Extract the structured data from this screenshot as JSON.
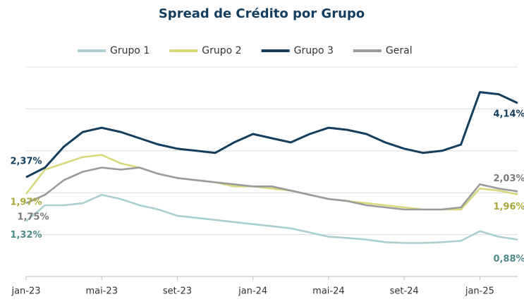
{
  "chart_data": {
    "type": "line",
    "title": "Spread de Crédito por Grupo",
    "categories": [
      "jan-23",
      null,
      null,
      null,
      "mai-23",
      null,
      null,
      null,
      "set-23",
      null,
      null,
      null,
      "jan-24",
      null,
      null,
      null,
      "mai-24",
      null,
      null,
      null,
      "set-24",
      null,
      null,
      null,
      "jan-25",
      null,
      null
    ],
    "series": [
      {
        "name": "Grupo 1",
        "color": "#a9cfcf",
        "label_color": "#4f8c8a",
        "values": [
          1.32,
          1.7,
          1.7,
          1.75,
          1.95,
          1.85,
          1.7,
          1.6,
          1.45,
          1.4,
          1.35,
          1.3,
          1.25,
          1.2,
          1.15,
          1.05,
          0.95,
          0.92,
          0.88,
          0.82,
          0.8,
          0.8,
          0.82,
          0.85,
          1.08,
          0.95,
          0.88
        ],
        "value_labels": [
          "1,32%",
          null,
          null,
          null,
          null,
          null,
          null,
          null,
          null,
          null,
          null,
          null,
          null,
          null,
          null,
          null,
          null,
          null,
          null,
          null,
          null,
          null,
          null,
          null,
          null,
          null,
          "0,88%"
        ]
      },
      {
        "name": "Grupo 2",
        "color": "#d6d97c",
        "label_color": "#a9a83a",
        "values": [
          1.97,
          2.55,
          2.7,
          2.85,
          2.9,
          2.7,
          2.6,
          2.45,
          2.35,
          2.3,
          2.25,
          2.15,
          2.15,
          2.1,
          2.05,
          1.95,
          1.85,
          1.8,
          1.75,
          1.7,
          1.65,
          1.6,
          1.6,
          1.6,
          2.1,
          2.05,
          1.96
        ],
        "value_labels": [
          "1,97%",
          null,
          null,
          null,
          null,
          null,
          null,
          null,
          null,
          null,
          null,
          null,
          null,
          null,
          null,
          null,
          null,
          null,
          null,
          null,
          null,
          null,
          null,
          null,
          null,
          null,
          "1,96%"
        ]
      },
      {
        "name": "Grupo 3",
        "color": "#143d5e",
        "label_color": "#143d5e",
        "values": [
          2.37,
          2.6,
          3.1,
          3.45,
          3.55,
          3.45,
          3.3,
          3.15,
          3.05,
          3.0,
          2.95,
          3.2,
          3.4,
          3.3,
          3.2,
          3.4,
          3.55,
          3.5,
          3.4,
          3.2,
          3.05,
          2.95,
          3.0,
          3.15,
          4.4,
          4.35,
          4.14
        ],
        "value_labels": [
          "2,37%",
          null,
          null,
          null,
          null,
          null,
          null,
          null,
          null,
          null,
          null,
          null,
          null,
          null,
          null,
          null,
          null,
          null,
          null,
          null,
          null,
          null,
          null,
          null,
          null,
          null,
          "4,14%"
        ]
      },
      {
        "name": "Geral",
        "color": "#9b9b9b",
        "label_color": "#7b7b7b",
        "values": [
          1.75,
          1.95,
          2.3,
          2.5,
          2.6,
          2.55,
          2.6,
          2.45,
          2.35,
          2.3,
          2.25,
          2.2,
          2.15,
          2.15,
          2.05,
          1.95,
          1.85,
          1.8,
          1.7,
          1.65,
          1.6,
          1.6,
          1.6,
          1.65,
          2.2,
          2.1,
          2.03
        ],
        "value_labels": [
          "1,75%",
          null,
          null,
          null,
          null,
          null,
          null,
          null,
          null,
          null,
          null,
          null,
          null,
          null,
          null,
          null,
          null,
          null,
          null,
          null,
          null,
          null,
          null,
          null,
          null,
          null,
          "2,03%"
        ]
      }
    ],
    "ylim": [
      0,
      5
    ],
    "yticks": [
      0,
      1,
      2,
      3,
      4,
      5
    ],
    "grid": true,
    "legend": "top"
  }
}
